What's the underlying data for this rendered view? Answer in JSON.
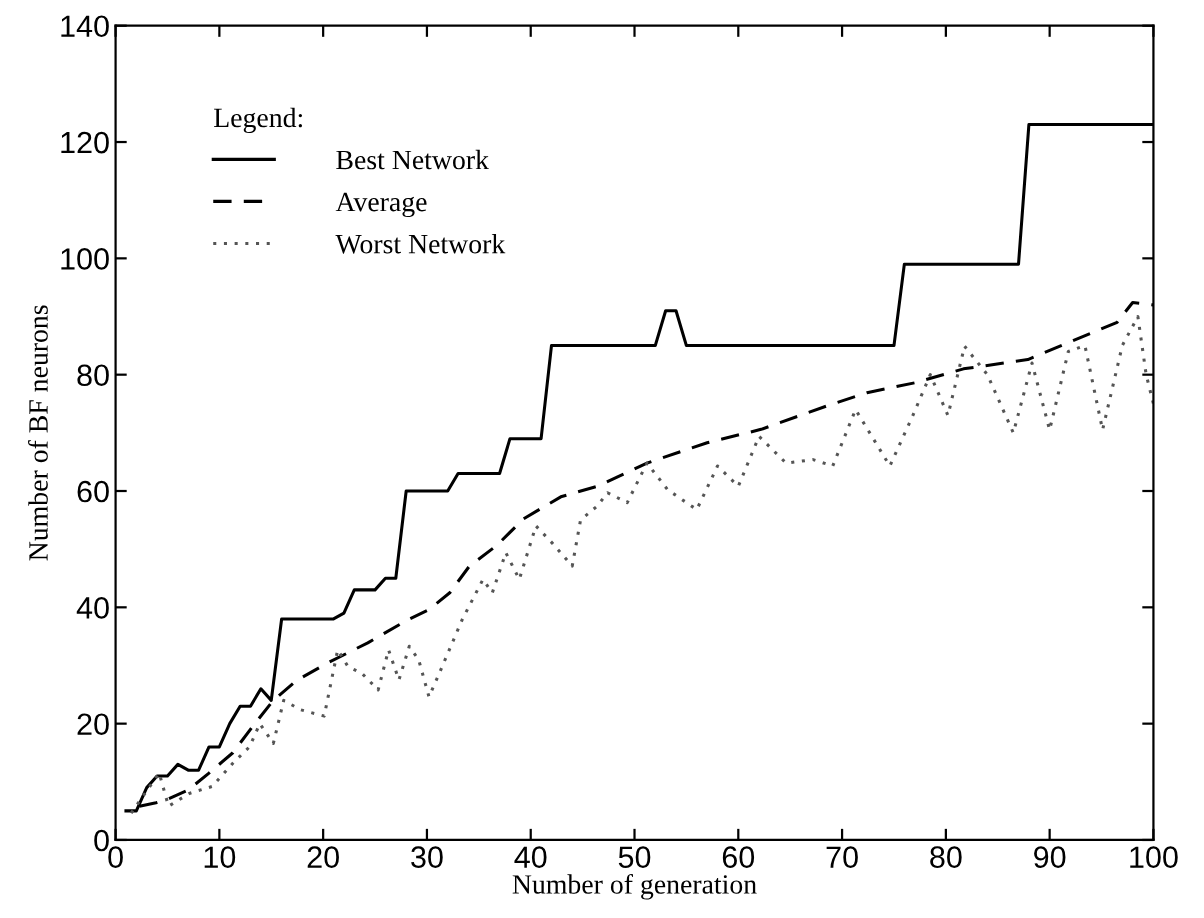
{
  "chart_data": {
    "type": "line",
    "xlabel": "Number of generation",
    "ylabel": "Number of BF neurons",
    "legend_title": "Legend:",
    "legend": "top left",
    "grid": false,
    "marker": "none",
    "xlim": [
      0,
      100
    ],
    "xticks": [
      0,
      10,
      20,
      30,
      40,
      50,
      60,
      70,
      80,
      90,
      100
    ],
    "ylim": [
      0,
      140
    ],
    "yticks": [
      0,
      20,
      40,
      60,
      80,
      100,
      120,
      140
    ],
    "series": [
      {
        "name": "Best Network",
        "color": "#000000",
        "line_style": "solid",
        "x": [
          1,
          2,
          3,
          4,
          5,
          6,
          7,
          8,
          9,
          10,
          11,
          12,
          13,
          14,
          15,
          16,
          21,
          22,
          23,
          25,
          26,
          27,
          28,
          32,
          33,
          37,
          38,
          41,
          42,
          52,
          53,
          54,
          55,
          75,
          76,
          87,
          88,
          100
        ],
        "values": [
          5,
          5,
          9,
          11,
          11,
          13,
          12,
          12,
          16,
          16,
          20,
          23,
          23,
          26,
          24,
          38,
          38,
          39,
          43,
          43,
          45,
          45,
          60,
          60,
          63,
          63,
          69,
          69,
          85,
          85,
          91,
          91,
          85,
          85,
          99,
          99,
          123,
          123
        ]
      },
      {
        "name": "Average",
        "color": "#000000",
        "line_style": "dashed",
        "x": [
          2.3,
          3.9,
          5,
          7,
          9,
          11.3,
          13.2,
          15.2,
          17.5,
          20.4,
          24.3,
          28.2,
          30.2,
          32.2,
          34.1,
          36.7,
          39.3,
          42.9,
          46.4,
          51.2,
          57,
          62.2,
          68.5,
          72.4,
          77,
          81.7,
          87.9,
          96.5,
          98,
          100
        ],
        "values": [
          5.8,
          6.4,
          7,
          8.6,
          11.5,
          15,
          19.5,
          24,
          27.5,
          30.4,
          33.9,
          37.9,
          39.6,
          42.5,
          47.1,
          50.6,
          55.2,
          59,
          60.8,
          64.8,
          68.3,
          70.6,
          74.6,
          76.9,
          78.6,
          81,
          82.6,
          89,
          92.4,
          92
        ]
      },
      {
        "name": "Worst Network",
        "color": "#555555",
        "line_style": "dotted",
        "x": [
          1.5,
          4.2,
          5.1,
          7.1,
          9.3,
          11.3,
          12.9,
          13.9,
          15.2,
          16.2,
          17.8,
          20.1,
          21.4,
          22.4,
          23.7,
          25.3,
          26.3,
          27.3,
          28.3,
          29.2,
          30.2,
          31.2,
          33.4,
          35.4,
          36.3,
          37.6,
          38.9,
          40.5,
          42.1,
          44,
          44.8,
          46.4,
          47.4,
          49.3,
          51.2,
          53.2,
          56,
          58,
          60,
          62,
          64.6,
          67.2,
          69.1,
          71.3,
          74.6,
          76.8,
          78.5,
          80.2,
          81.8,
          84,
          86.5,
          88.3,
          90,
          91.8,
          93.4,
          95.1,
          97,
          98.5,
          99.3,
          100
        ],
        "values": [
          4.6,
          11.5,
          5.8,
          8,
          9.2,
          13.2,
          16,
          20,
          16.6,
          24,
          22.4,
          21.3,
          32.7,
          29.8,
          28.7,
          25.8,
          32.7,
          27.5,
          33.3,
          31,
          24.6,
          28.7,
          37.9,
          44.8,
          42.5,
          49.4,
          44.8,
          54,
          51,
          47.1,
          55,
          57.4,
          59.7,
          58,
          64.8,
          60.2,
          56.8,
          64.3,
          60.8,
          69.4,
          64.8,
          65.4,
          64.3,
          74,
          64.3,
          72.9,
          80,
          73,
          84.9,
          80,
          70,
          82,
          70.5,
          84,
          85,
          70.5,
          85,
          90,
          80,
          75
        ]
      }
    ]
  }
}
